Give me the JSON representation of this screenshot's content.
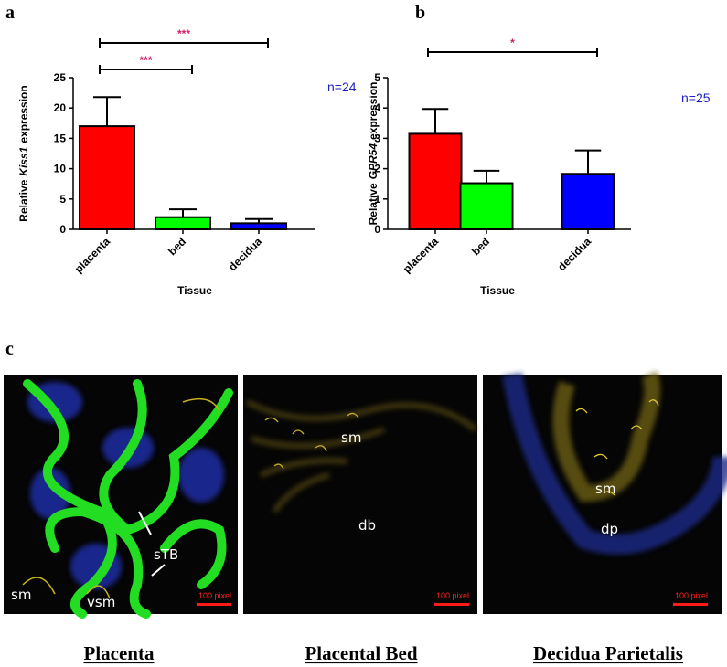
{
  "chart_data": [
    {
      "type": "bar",
      "panel": "a",
      "categories": [
        "placenta",
        "bed",
        "decidua"
      ],
      "values": [
        17,
        2,
        1
      ],
      "errors": [
        4.8,
        1.3,
        0.7
      ],
      "colors": [
        "#ff0000",
        "#00ff00",
        "#0000ff"
      ],
      "ylim": [
        0,
        25
      ],
      "yticks": [
        0,
        5,
        10,
        15,
        20,
        25
      ],
      "ylabel_prefix": "Relative",
      "ylabel_gene": "Kiss1",
      "ylabel_suffix": "expression",
      "xlabel": "Tissue",
      "n_label": "n=24",
      "significance": [
        {
          "label": "***",
          "from": 0,
          "to": 2
        },
        {
          "label": "***",
          "from": 0,
          "to": 1
        }
      ]
    },
    {
      "type": "bar",
      "panel": "b",
      "categories": [
        "placenta",
        "bed",
        "decidua"
      ],
      "values": [
        3.15,
        1.52,
        1.83
      ],
      "errors": [
        0.82,
        0.41,
        0.77
      ],
      "colors": [
        "#ff0000",
        "#00ff00",
        "#0000ff"
      ],
      "ylim": [
        0,
        5
      ],
      "yticks": [
        0,
        1,
        2,
        3,
        4,
        5
      ],
      "ylabel_prefix": "Relative",
      "ylabel_gene": "GPR54",
      "ylabel_suffix": "expression",
      "xlabel": "Tissue",
      "n_label": "n=25",
      "significance": [
        {
          "label": "*",
          "from": 0,
          "to": 2
        }
      ]
    }
  ],
  "panel_c": {
    "panel": "c",
    "images": [
      {
        "caption": "Placenta",
        "labels": [
          "sTB",
          "sm",
          "vsm"
        ],
        "scale": "100 pixel"
      },
      {
        "caption": "Placental Bed",
        "labels": [
          "sm",
          "db"
        ],
        "scale": "100 pixel"
      },
      {
        "caption": "Decidua Parietalis",
        "labels": [
          "sm",
          "dp"
        ],
        "scale": "100 pixel"
      }
    ]
  }
}
